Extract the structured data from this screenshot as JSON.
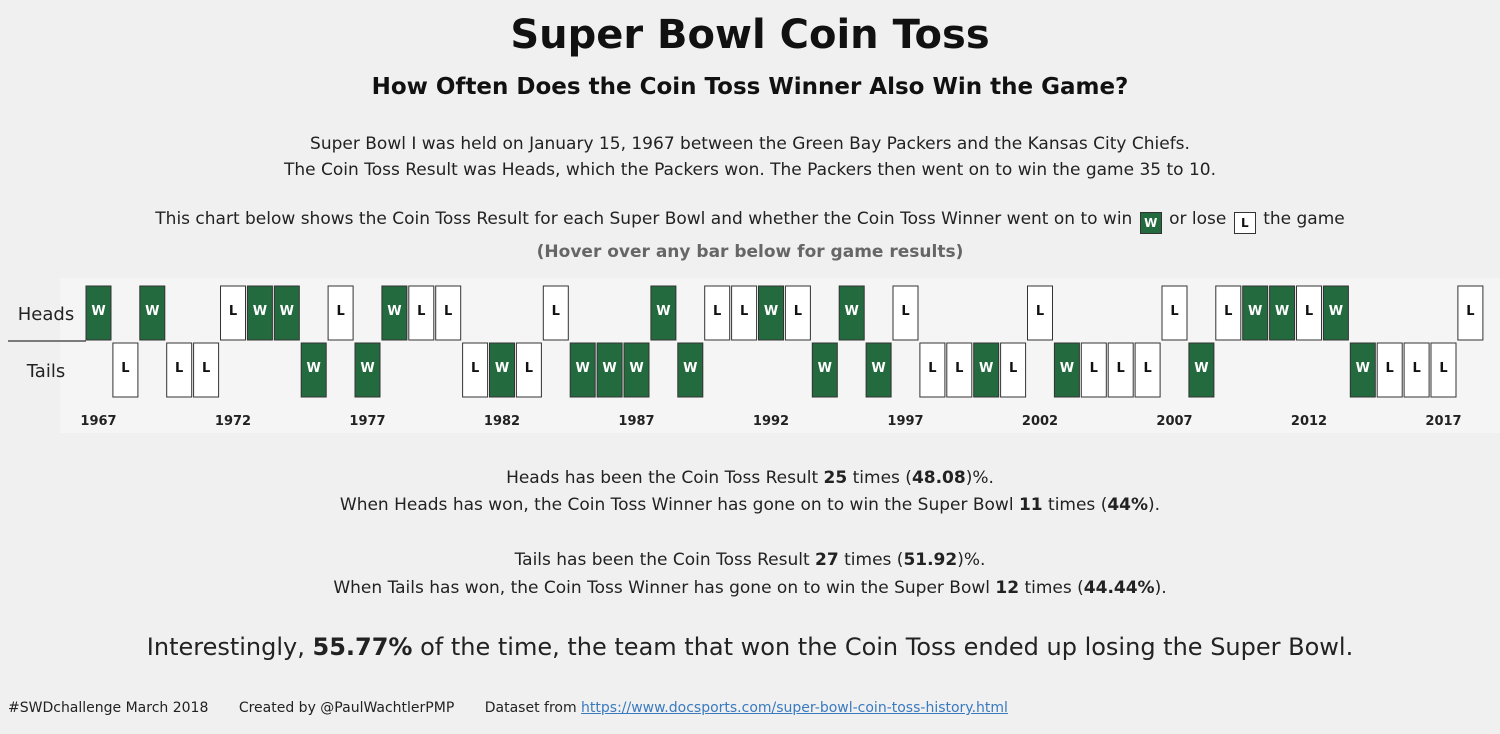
{
  "title": "Super Bowl Coin Toss",
  "subtitle": "How Often Does the Coin Toss Winner Also Win the Game?",
  "intro": [
    "Super Bowl I was held on January 15, 1967 between the Green Bay Packers and the Kansas City Chiefs.",
    "The Coin Toss Result was Heads, which the Packers won.  The Packers then went on to win the game 35 to 10."
  ],
  "explain": {
    "before": "This chart below shows the Coin Toss Result for each Super Bowl and whether the Coin Toss Winner went on to win",
    "win_key": "W",
    "middle": "or lose",
    "lose_key": "L",
    "after": "the game"
  },
  "hover_note": "(Hover over any bar below for game results)",
  "colors": {
    "win": "#236b3f",
    "lose": "#ffffff",
    "border": "#333333"
  },
  "chart_data": {
    "type": "heatmap",
    "rows": [
      "Heads",
      "Tails"
    ],
    "years": [
      1967,
      1968,
      1969,
      1970,
      1971,
      1972,
      1973,
      1974,
      1975,
      1976,
      1977,
      1978,
      1979,
      1980,
      1981,
      1982,
      1983,
      1984,
      1985,
      1986,
      1987,
      1988,
      1989,
      1990,
      1991,
      1992,
      1993,
      1994,
      1995,
      1996,
      1997,
      1998,
      1999,
      2000,
      2001,
      2002,
      2003,
      2004,
      2005,
      2006,
      2007,
      2008,
      2009,
      2010,
      2011,
      2012,
      2013,
      2014,
      2015,
      2016,
      2017,
      2018
    ],
    "toss": [
      "H",
      "T",
      "H",
      "T",
      "T",
      "H",
      "H",
      "H",
      "T",
      "H",
      "T",
      "H",
      "H",
      "H",
      "T",
      "T",
      "T",
      "H",
      "T",
      "T",
      "T",
      "H",
      "T",
      "H",
      "H",
      "H",
      "H",
      "T",
      "H",
      "T",
      "H",
      "T",
      "T",
      "T",
      "T",
      "H",
      "T",
      "T",
      "T",
      "T",
      "H",
      "T",
      "H",
      "H",
      "H",
      "H",
      "H",
      "T",
      "T",
      "T",
      "T",
      "H"
    ],
    "result": [
      "W",
      "L",
      "W",
      "L",
      "L",
      "L",
      "W",
      "W",
      "W",
      "L",
      "W",
      "W",
      "L",
      "L",
      "L",
      "W",
      "L",
      "L",
      "W",
      "W",
      "W",
      "W",
      "W",
      "L",
      "L",
      "W",
      "L",
      "W",
      "W",
      "W",
      "L",
      "L",
      "L",
      "W",
      "L",
      "L",
      "W",
      "L",
      "L",
      "L",
      "L",
      "W",
      "L",
      "W",
      "W",
      "L",
      "W",
      "W",
      "L",
      "L",
      "L",
      "L"
    ],
    "tick_labels": [
      "1967",
      "1972",
      "1977",
      "1982",
      "1987",
      "1992",
      "1997",
      "2002",
      "2007",
      "2012",
      "2017"
    ]
  },
  "stats": {
    "heads_line": {
      "a": "Heads has been the Coin Toss Result ",
      "count": "25",
      "b": " times (",
      "pct": "48.08",
      "c": ")%."
    },
    "heads_win_line": {
      "a": "When Heads has won, the Coin Toss Winner has gone on to win the Super Bowl ",
      "count": "11",
      "b": " times (",
      "pct": "44%",
      "c": ")."
    },
    "tails_line": {
      "a": "Tails has been the Coin Toss Result ",
      "count": "27",
      "b": " times (",
      "pct": "51.92",
      "c": ")%."
    },
    "tails_win_line": {
      "a": "When Tails has won, the Coin Toss Winner has gone on to win the Super Bowl ",
      "count": "12",
      "b": " times (",
      "pct": "44.44%",
      "c": ")."
    }
  },
  "conclusion": {
    "a": "Interestingly, ",
    "pct": "55.77%",
    "b": " of the time, the team that won the Coin Toss ended up losing the Super Bowl."
  },
  "footer": {
    "challenge": "#SWDchallenge March 2018",
    "credit": "Created by @PaulWachtlerPMP",
    "dataset_label": "Dataset from ",
    "dataset_url": "https://www.docsports.com/super-bowl-coin-toss-history.html"
  }
}
